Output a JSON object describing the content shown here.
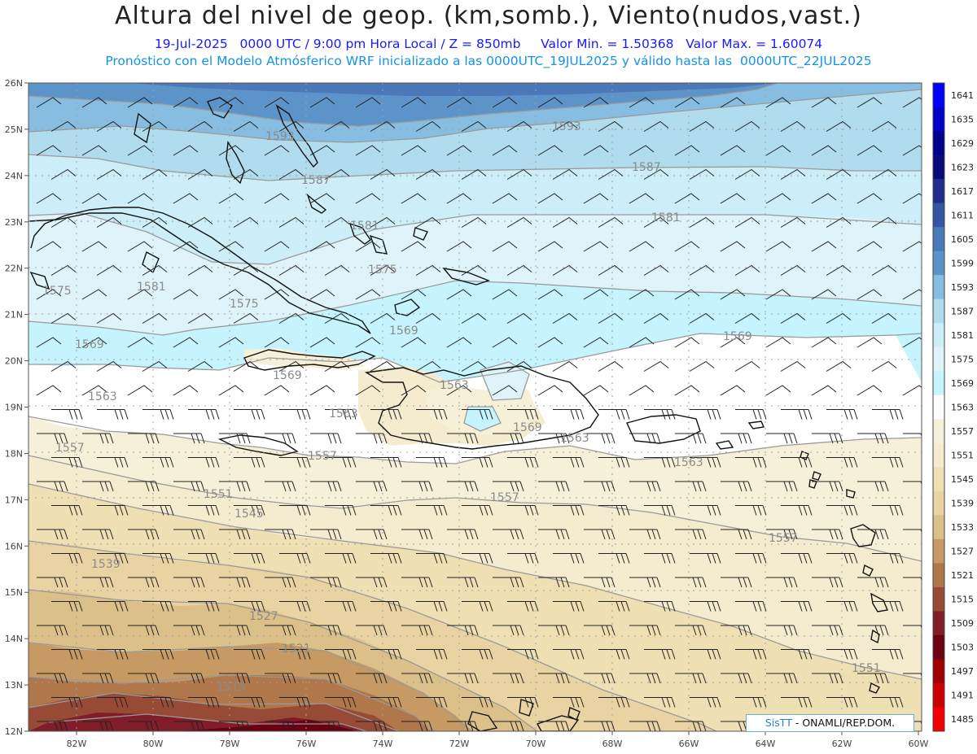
{
  "header": {
    "title": "Altura del nivel de geop. (km,somb.), Viento(nudos,vast.)",
    "line1": "19-Jul-2025   0000 UTC / 9:00 pm Hora Local / Z = 850mb     Valor Min. = 1.50368   Valor Max. = 1.60074",
    "line2": "Pronóstico con el Modelo Atmósferico WRF inicializado a las 0000UTC_19JUL2025 y válido hasta las  0000UTC_22JUL2025"
  },
  "axes": {
    "lat_labels": [
      "26N",
      "25N",
      "24N",
      "23N",
      "22N",
      "21N",
      "20N",
      "19N",
      "18N",
      "17N",
      "16N",
      "15N",
      "14N",
      "13N",
      "12N"
    ],
    "lon_labels": [
      "82W",
      "80W",
      "78W",
      "76W",
      "74W",
      "72W",
      "70W",
      "68W",
      "66W",
      "64W",
      "62W",
      "60W"
    ]
  },
  "colorbar": {
    "labels": [
      "1641",
      "1635",
      "1629",
      "1623",
      "1617",
      "1611",
      "1605",
      "1599",
      "1593",
      "1587",
      "1581",
      "1575",
      "1569",
      "1563",
      "1557",
      "1551",
      "1545",
      "1539",
      "1533",
      "1527",
      "1521",
      "1515",
      "1509",
      "1503",
      "1497",
      "1491",
      "1485"
    ],
    "colors": [
      "#0000ff",
      "#0000c8",
      "#00008c",
      "#0a0a7a",
      "#1f2e8c",
      "#3355a3",
      "#4a78b8",
      "#5c93c9",
      "#87bde0",
      "#b0dcee",
      "#cceef8",
      "#dff4fa",
      "#c5f4ff",
      "#ffffff",
      "#f7f0d8",
      "#f5ecd0",
      "#efe0b4",
      "#e9d3a2",
      "#dcc08a",
      "#c69a62",
      "#b0774a",
      "#974b36",
      "#801d28",
      "#6b0012",
      "#a00000",
      "#cd0000",
      "#f00000"
    ]
  },
  "contour_labels": [
    "1593",
    "1593",
    "1587",
    "1587",
    "1581",
    "1581",
    "1575",
    "1575",
    "1575",
    "1581",
    "1569",
    "1569",
    "1569",
    "1569",
    "1563",
    "1563",
    "1563",
    "1557",
    "1557",
    "1557",
    "1551",
    "1545",
    "1539",
    "1527",
    "1521",
    "1515",
    "1557",
    "1551",
    "1569",
    "1563",
    "1563"
  ],
  "credit": {
    "brand": "SisTT",
    "rest": " - ONAMLI/REP.DOM."
  }
}
